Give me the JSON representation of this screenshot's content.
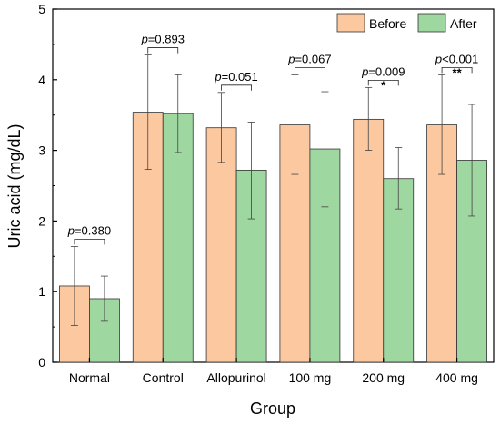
{
  "chart_data": {
    "type": "bar",
    "categories": [
      "Normal",
      "Control",
      "Allopurinol",
      "100 mg",
      "200 mg",
      "400 mg"
    ],
    "series": [
      {
        "name": "Before",
        "color": "#fcc8a0",
        "values": [
          1.08,
          3.54,
          3.32,
          3.36,
          3.44,
          3.36
        ],
        "err_low": [
          0.52,
          2.73,
          2.83,
          2.66,
          3.0,
          2.66
        ],
        "err_high": [
          1.64,
          4.35,
          3.82,
          4.07,
          3.89,
          4.07
        ]
      },
      {
        "name": "After",
        "color": "#9fd7a1",
        "values": [
          0.9,
          3.52,
          2.72,
          3.02,
          2.6,
          2.86
        ],
        "err_low": [
          0.58,
          2.97,
          2.03,
          2.2,
          2.17,
          2.07
        ],
        "err_high": [
          1.22,
          4.07,
          3.4,
          3.83,
          3.04,
          3.65
        ]
      }
    ],
    "annotations": [
      {
        "p": "=0.380",
        "stars": ""
      },
      {
        "p": "=0.893",
        "stars": ""
      },
      {
        "p": "=0.051",
        "stars": ""
      },
      {
        "p": "=0.067",
        "stars": ""
      },
      {
        "p": "=0.009",
        "stars": "*"
      },
      {
        "p": "<0.001",
        "stars": "**"
      }
    ],
    "p_label": "p",
    "xlabel": "Group",
    "ylabel": "Uric acid (mg/dL)",
    "ylim": [
      0,
      5
    ],
    "yticks": [
      0,
      1,
      2,
      3,
      4,
      5
    ],
    "legend_position": "top-right",
    "grid": false
  }
}
